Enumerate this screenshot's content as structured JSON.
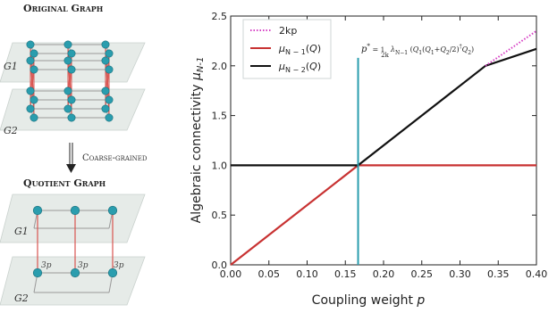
{
  "left_panel": {
    "original_title": "Original Graph",
    "arrow_label": "Coarse-grained",
    "quotient_title": "Quotient Graph",
    "g1_label": "G1",
    "g2_label": "G2",
    "edge_label": "3p",
    "node_color": "#2a9dae",
    "inter_edge_color": "#d9534f",
    "plane_color": "#e6ebe8"
  },
  "chart_data": {
    "type": "line",
    "xlabel": "Coupling weight p",
    "ylabel": "Algebraic connectivity μN-1",
    "xlim": [
      0.0,
      0.4
    ],
    "ylim": [
      0.0,
      2.5
    ],
    "xticks": [
      "0.00",
      "0.05",
      "0.10",
      "0.15",
      "0.20",
      "0.25",
      "0.30",
      "0.35",
      "0.40"
    ],
    "yticks": [
      "0.0",
      "0.5",
      "1.0",
      "1.5",
      "2.0",
      "2.5"
    ],
    "legend_position": "top-left",
    "series": [
      {
        "name": "2kp",
        "style": "dotted",
        "color": "#d63fc4",
        "x": [
          0.3333,
          0.4
        ],
        "y": [
          2.0,
          2.35
        ]
      },
      {
        "name": "μN-1(Q)",
        "style": "solid",
        "color": "#c83232",
        "x": [
          0.0,
          0.1667,
          0.4
        ],
        "y": [
          0.0,
          1.0,
          1.0
        ]
      },
      {
        "name": "μN-2(Q)",
        "style": "solid",
        "color": "#111111",
        "x": [
          0.0,
          0.1667,
          0.3333,
          0.4
        ],
        "y": [
          1.0,
          1.0,
          2.0,
          2.17
        ]
      }
    ],
    "annotation": {
      "label": "p* = 1/2k λN-1 ( Q1 ( Q1+Q2 / 2 )† Q2 )",
      "x": 0.1667,
      "color": "#2a9dae"
    }
  }
}
